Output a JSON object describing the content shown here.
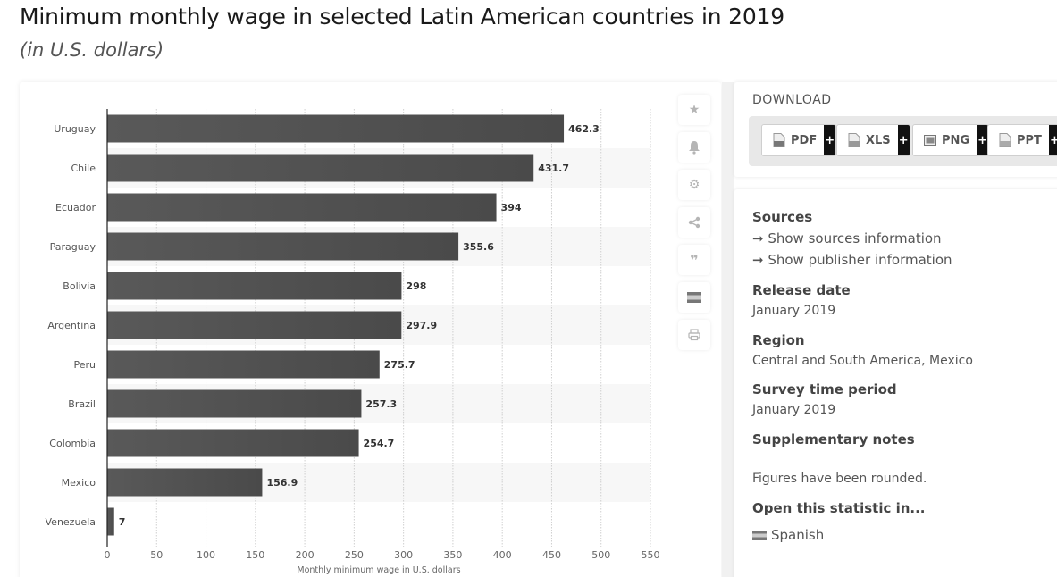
{
  "header": {
    "title": "Minimum monthly wage in selected Latin American countries in 2019",
    "subtitle": "(in U.S. dollars)"
  },
  "chart_data": {
    "type": "bar",
    "orientation": "horizontal",
    "title": "Minimum monthly wage in selected Latin American countries in 2019",
    "subtitle": "(in U.S. dollars)",
    "categories": [
      "Uruguay",
      "Chile",
      "Ecuador",
      "Paraguay",
      "Bolivia",
      "Argentina",
      "Peru",
      "Brazil",
      "Colombia",
      "Mexico",
      "Venezuela"
    ],
    "values": [
      462.3,
      431.7,
      394,
      355.6,
      298,
      297.9,
      275.7,
      257.3,
      254.7,
      156.9,
      7
    ],
    "value_labels": [
      "462.3",
      "431.7",
      "394",
      "355.6",
      "298",
      "297.9",
      "275.7",
      "257.3",
      "254.7",
      "156.9",
      "7"
    ],
    "xlabel": "Monthly minimum wage in U.S. dollars",
    "ylabel": "",
    "xlim": [
      0,
      550
    ],
    "xticks": [
      0,
      50,
      100,
      150,
      200,
      250,
      300,
      350,
      400,
      450,
      500,
      550
    ],
    "grid": true,
    "legend": "none",
    "bar_color": "#555555"
  },
  "toolbar": {
    "items": [
      {
        "name": "favorite",
        "icon": "star-icon",
        "glyph": "★"
      },
      {
        "name": "notification",
        "icon": "bell-icon",
        "glyph": "🔔"
      },
      {
        "name": "settings",
        "icon": "gear-icon",
        "glyph": "⚙"
      },
      {
        "name": "share",
        "icon": "share-icon",
        "glyph": "<"
      },
      {
        "name": "cite",
        "icon": "quote-icon",
        "glyph": "❞"
      },
      {
        "name": "language",
        "icon": "flag-icon",
        "glyph": ""
      },
      {
        "name": "print",
        "icon": "print-icon",
        "glyph": "⎙"
      }
    ]
  },
  "download": {
    "title": "DOWNLOAD",
    "buttons": [
      {
        "label": "PDF",
        "plus": "+"
      },
      {
        "label": "XLS",
        "plus": "+"
      },
      {
        "label": "PNG",
        "plus": "+"
      },
      {
        "label": "PPT",
        "plus": "+"
      }
    ]
  },
  "info": {
    "sources_title": "Sources",
    "sources_link": "➞ Show sources information",
    "publisher_link": "➞ Show publisher information",
    "release_title": "Release date",
    "release_value": "January 2019",
    "region_title": "Region",
    "region_value": "Central and South America, Mexico",
    "survey_title": "Survey time period",
    "survey_value": "January 2019",
    "notes_title": "Supplementary notes",
    "notes_value": "Figures have been rounded.",
    "open_title": "Open this statistic in...",
    "open_language": "Spanish"
  }
}
